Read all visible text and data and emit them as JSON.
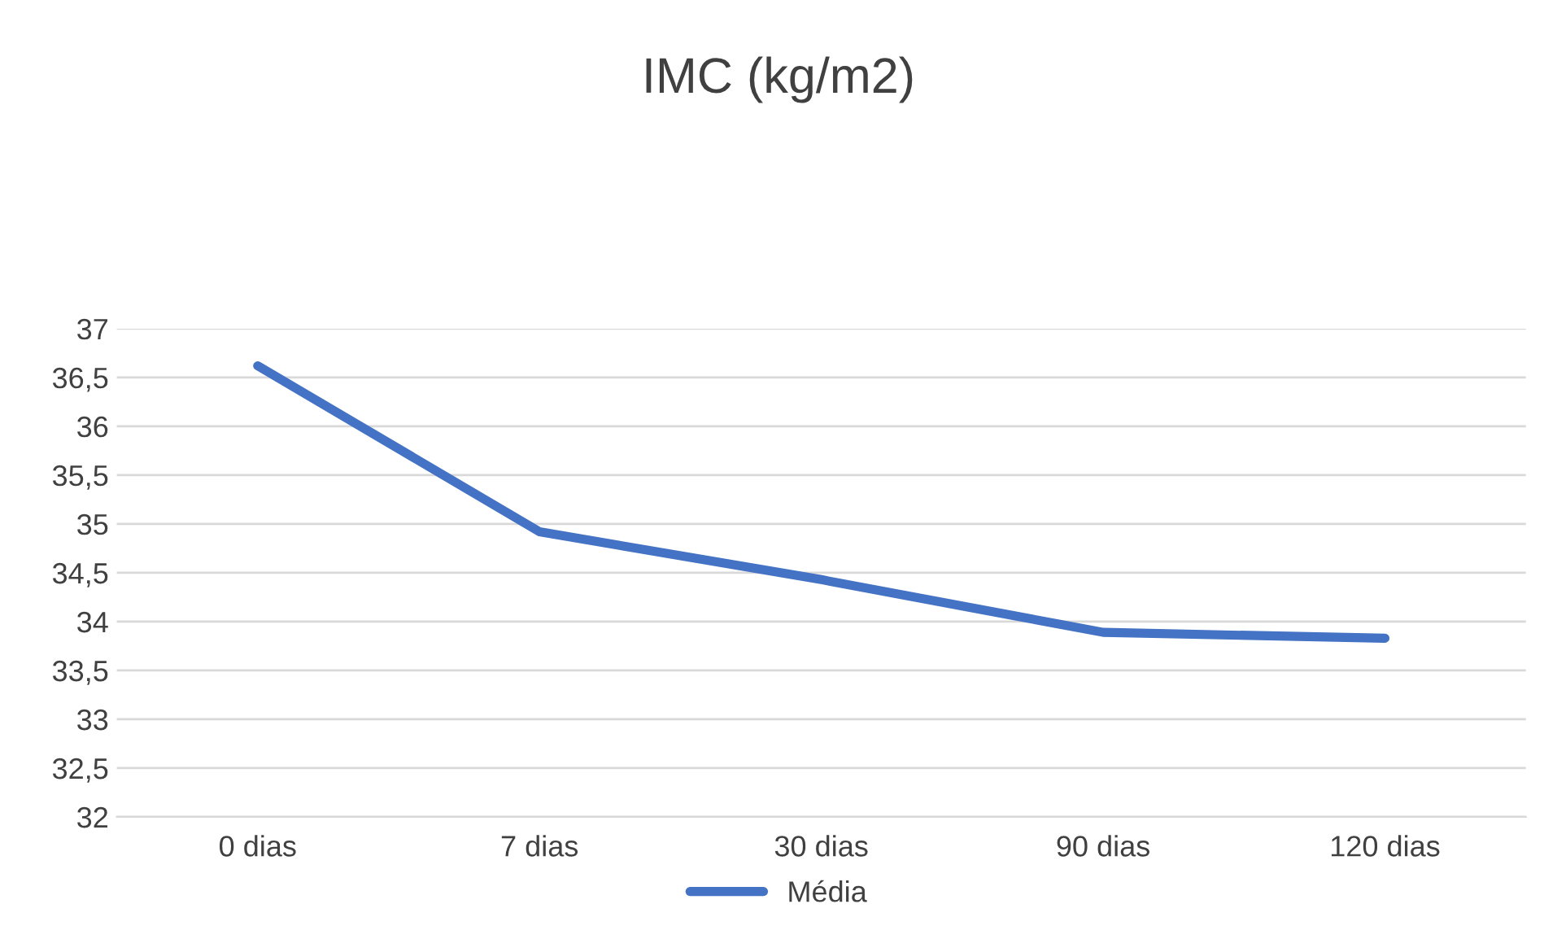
{
  "chart_data": {
    "type": "line",
    "title": "IMC (kg/m2)",
    "categories": [
      "0 dias",
      "7 dias",
      "30 dias",
      "90 dias",
      "120 dias"
    ],
    "series": [
      {
        "name": "Média",
        "color": "#4472c4",
        "values": [
          36.62,
          34.92,
          34.43,
          33.89,
          33.83
        ]
      }
    ],
    "ylim": [
      32,
      37
    ],
    "yticks": [
      32,
      {
        "value": 32.5,
        "label": "32,5"
      },
      33,
      {
        "value": 33.5,
        "label": "33,5"
      },
      34,
      {
        "value": 34.5,
        "label": "34,5"
      },
      35,
      {
        "value": 35.5,
        "label": "35,5"
      },
      36,
      {
        "value": 36.5,
        "label": "36,5"
      },
      37
    ],
    "grid": "y",
    "legend": "bottom",
    "marker": "none",
    "line_style": "solid"
  }
}
